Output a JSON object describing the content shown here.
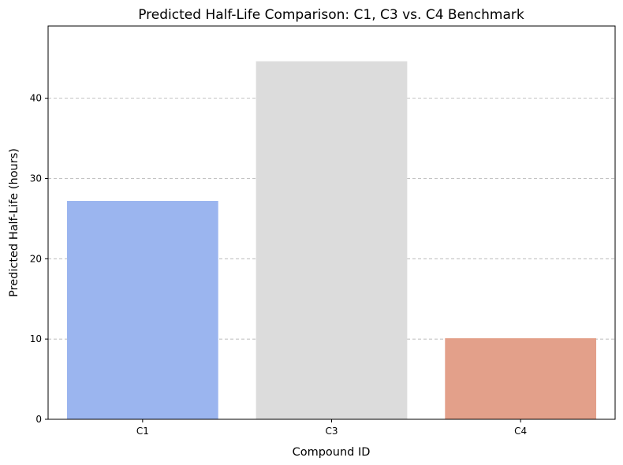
{
  "chart_data": {
    "type": "bar",
    "title": "Predicted Half-Life Comparison: C1, C3 vs. C4 Benchmark",
    "xlabel": "Compound ID",
    "ylabel": "Predicted Half-Life (hours)",
    "categories": [
      "C1",
      "C3",
      "C4"
    ],
    "values": [
      27.2,
      44.6,
      10.1
    ],
    "colors": [
      "#9bb5ef",
      "#dcdcdc",
      "#e3a08a"
    ],
    "ylim": [
      0,
      49
    ],
    "yticks": [
      0,
      10,
      20,
      30,
      40
    ],
    "grid": "y-dashed",
    "legend": "none"
  }
}
